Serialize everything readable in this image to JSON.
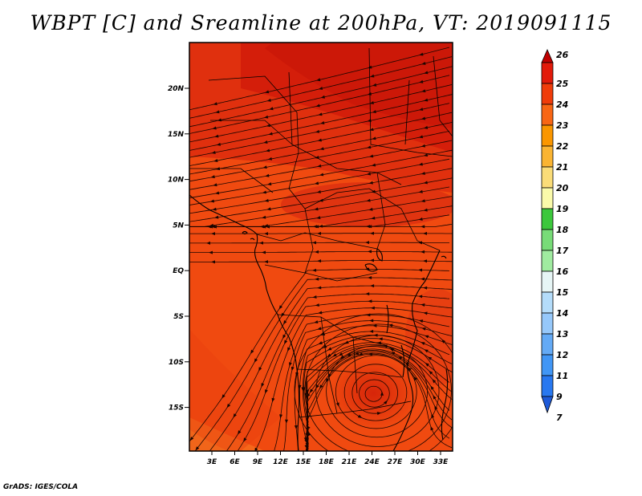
{
  "title": "WBPT [C] and Sreamline at 200hPa, VT: 2019091115",
  "footer": "GrADS: IGES/COLA",
  "map": {
    "lat_ticks": [
      "20N",
      "15N",
      "10N",
      "5N",
      "EQ",
      "5S",
      "10S",
      "15S"
    ],
    "lon_ticks": [
      "3E",
      "6E",
      "9E",
      "12E",
      "15E",
      "18E",
      "21E",
      "24E",
      "27E",
      "30E",
      "33E"
    ],
    "colors": {
      "field_main": "#f04a10",
      "field_warm": "#e03410",
      "field_hot": "#d8200c",
      "field_cool": "#f86016",
      "streamline": "#1a0500",
      "coastline": "#000000"
    }
  },
  "colorbar": {
    "labels": [
      "26",
      "25",
      "24",
      "23",
      "22",
      "21",
      "20",
      "19",
      "18",
      "17",
      "16",
      "15",
      "14",
      "13",
      "12",
      "11",
      "9",
      "7"
    ],
    "colors": [
      "#c00000",
      "#e21a0a",
      "#f03c0a",
      "#f86614",
      "#fa9600",
      "#fab432",
      "#fadc78",
      "#fafaaa",
      "#3cc83c",
      "#78dc78",
      "#a0eba0",
      "#e6f5f5",
      "#b4dcfa",
      "#96c8fa",
      "#64aaf5",
      "#4196f5",
      "#2878f0",
      "#1e5ad8"
    ]
  }
}
